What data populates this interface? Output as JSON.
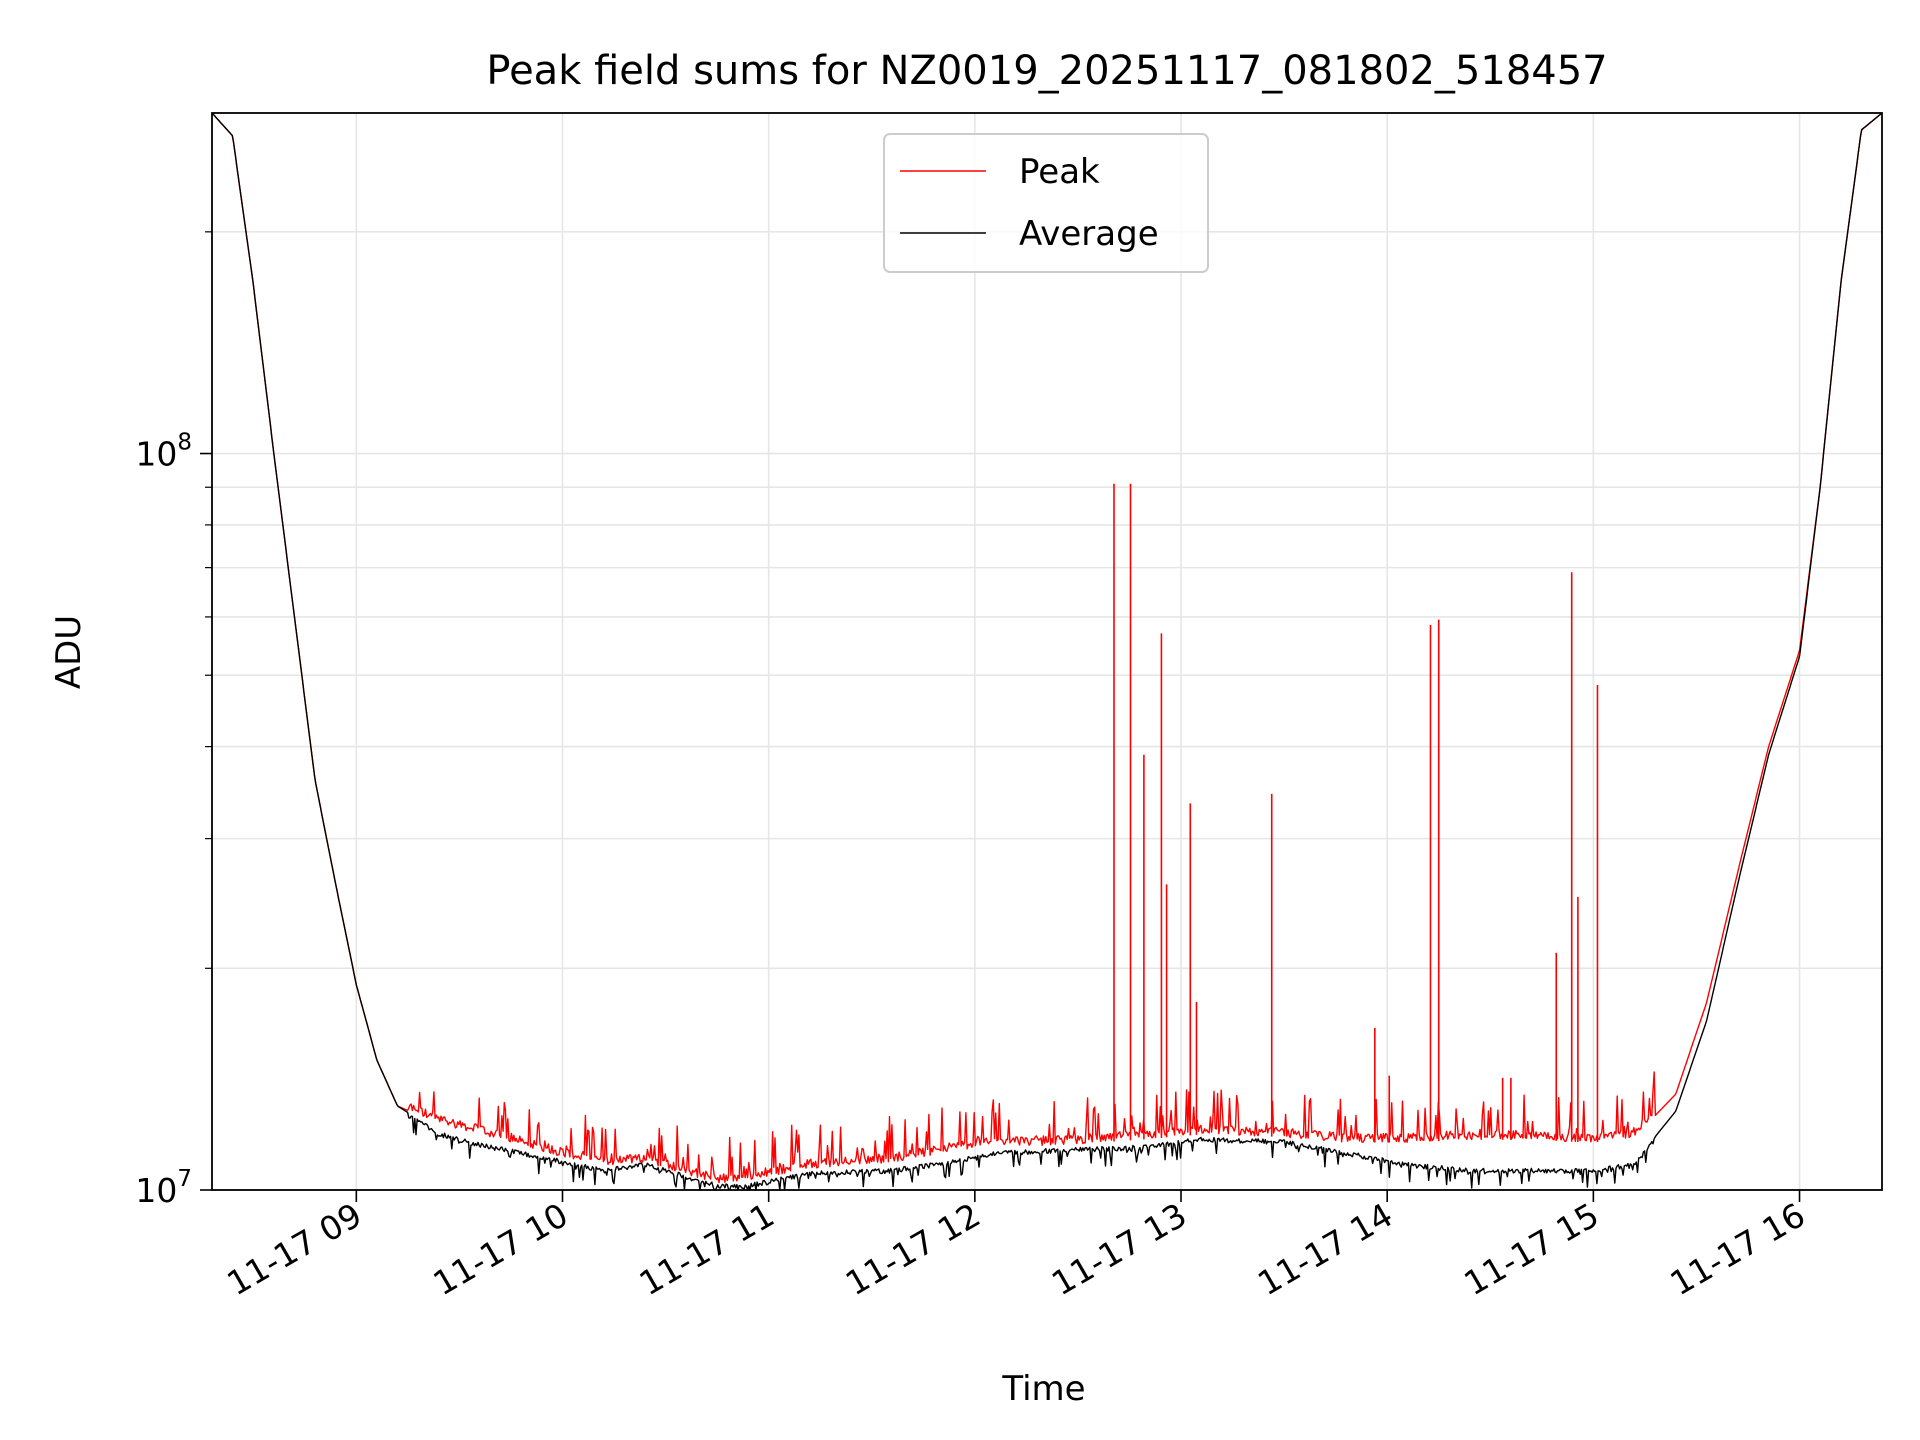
{
  "chart_data": {
    "type": "line",
    "title": "Peak field sums for NZ0019_20251117_081802_518457",
    "xlabel": "Time",
    "ylabel": "ADU",
    "yscale": "log",
    "ylim": [
      10000000,
      290000000
    ],
    "xlim": [
      8.3,
      16.4
    ],
    "grid": true,
    "legend_position": "upper center",
    "x_tick_values": [
      9,
      10,
      11,
      12,
      13,
      14,
      15,
      16
    ],
    "x_tick_labels": [
      "11-17 09",
      "11-17 10",
      "11-17 11",
      "11-17 12",
      "11-17 13",
      "11-17 14",
      "11-17 15",
      "11-17 16"
    ],
    "y_tick_values": [
      10000000,
      100000000
    ],
    "y_tick_labels": [
      {
        "base": "10",
        "exp": "7"
      },
      {
        "base": "10",
        "exp": "8"
      }
    ],
    "y_minor_tick_values": [
      20000000,
      30000000,
      40000000,
      50000000,
      60000000,
      70000000,
      80000000,
      90000000,
      200000000
    ],
    "series": [
      {
        "name": "Peak",
        "color": "#ff0000",
        "x": [
          8.3,
          8.4,
          8.5,
          8.6,
          8.7,
          8.8,
          8.9,
          9.0,
          9.1,
          9.2,
          9.4,
          9.6,
          9.8,
          10.0,
          10.2,
          10.4,
          10.6,
          10.75,
          10.9,
          11.2,
          11.6,
          11.9,
          12.1,
          12.4,
          12.8,
          13.1,
          13.5,
          13.8,
          14.1,
          14.4,
          14.7,
          15.0,
          15.2,
          15.4,
          15.55,
          15.7,
          15.85,
          16.0,
          16.1,
          16.2,
          16.3,
          16.4
        ],
        "values": [
          290000000,
          270000000,
          170000000,
          100000000,
          60000000,
          36000000,
          26000000,
          19000000,
          15000000,
          13000000,
          12300000,
          11900000,
          11500000,
          11100000,
          10800000,
          10900000,
          10500000,
          10200000,
          10300000,
          10700000,
          10900000,
          11300000,
          11500000,
          11500000,
          11700000,
          11900000,
          11800000,
          11600000,
          11600000,
          11700000,
          11700000,
          11600000,
          11800000,
          13500000,
          18000000,
          27000000,
          40000000,
          54000000,
          90000000,
          170000000,
          275000000,
          290000000
        ],
        "spikes": [
          {
            "x": 12.675,
            "value": 91000000
          },
          {
            "x": 12.755,
            "value": 91000000
          },
          {
            "x": 12.82,
            "value": 39000000
          },
          {
            "x": 12.905,
            "value": 57000000
          },
          {
            "x": 12.93,
            "value": 26000000
          },
          {
            "x": 13.045,
            "value": 33500000
          },
          {
            "x": 13.075,
            "value": 18000000
          },
          {
            "x": 13.44,
            "value": 34500000
          },
          {
            "x": 13.94,
            "value": 16600000
          },
          {
            "x": 14.01,
            "value": 14300000
          },
          {
            "x": 14.21,
            "value": 58500000
          },
          {
            "x": 14.25,
            "value": 59500000
          },
          {
            "x": 14.56,
            "value": 14200000
          },
          {
            "x": 14.6,
            "value": 14200000
          },
          {
            "x": 14.82,
            "value": 21000000
          },
          {
            "x": 14.895,
            "value": 69000000
          },
          {
            "x": 14.925,
            "value": 25000000
          },
          {
            "x": 15.02,
            "value": 48500000
          }
        ]
      },
      {
        "name": "Average",
        "color": "#000000",
        "x": [
          8.3,
          8.4,
          8.5,
          8.6,
          8.7,
          8.8,
          8.9,
          9.0,
          9.1,
          9.2,
          9.4,
          9.6,
          9.8,
          10.0,
          10.2,
          10.4,
          10.6,
          10.75,
          10.9,
          11.2,
          11.6,
          11.9,
          12.1,
          12.4,
          12.8,
          13.1,
          13.5,
          13.8,
          14.1,
          14.4,
          14.7,
          15.0,
          15.2,
          15.4,
          15.55,
          15.7,
          15.85,
          16.0,
          16.1,
          16.2,
          16.3,
          16.4
        ],
        "values": [
          290000000,
          270000000,
          170000000,
          100000000,
          60000000,
          36000000,
          26000000,
          19000000,
          15000000,
          13000000,
          12000000,
          11600000,
          11300000,
          11000000,
          10700000,
          10900000,
          10500000,
          10200000,
          10200000,
          10600000,
          10700000,
          11000000,
          11300000,
          11400000,
          11500000,
          11800000,
          11700000,
          11300000,
          10900000,
          10700000,
          10700000,
          10700000,
          10900000,
          12800000,
          17000000,
          26000000,
          39000000,
          53000000,
          90000000,
          170000000,
          275000000,
          290000000
        ]
      }
    ]
  }
}
